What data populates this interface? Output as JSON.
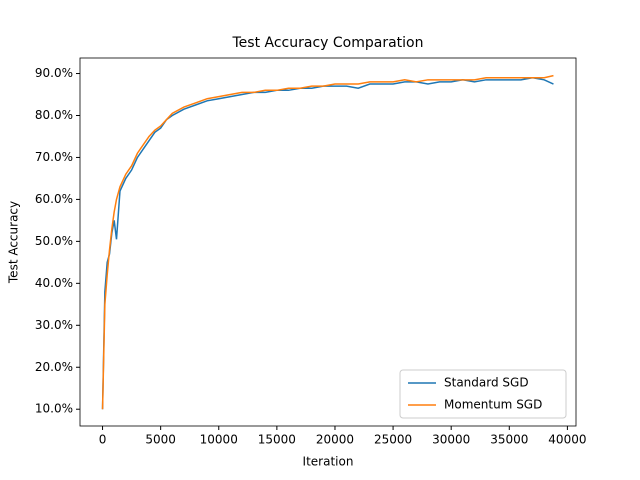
{
  "chart_data": {
    "type": "line",
    "title": "Test Accuracy Comparation",
    "x_label": "Iteration",
    "y_label": "Test Accuracy",
    "x": [
      0,
      200,
      400,
      600,
      800,
      1000,
      1200,
      1500,
      2000,
      2500,
      3000,
      3500,
      4000,
      4500,
      5000,
      5500,
      6000,
      7000,
      8000,
      9000,
      10000,
      11000,
      12000,
      13000,
      14000,
      15000,
      16000,
      17000,
      18000,
      19000,
      20000,
      21000,
      22000,
      23000,
      24000,
      25000,
      26000,
      27000,
      28000,
      29000,
      30000,
      31000,
      32000,
      33000,
      34000,
      35000,
      36000,
      37000,
      38000,
      38800
    ],
    "series": [
      {
        "name": "Standard SGD",
        "color": "#1f77b4",
        "values": [
          10,
          38,
          45,
          47,
          52,
          55,
          50.5,
          62,
          65,
          67,
          70,
          72,
          74,
          76,
          77,
          79,
          80,
          81.5,
          82.5,
          83.5,
          84,
          84.5,
          85,
          85.5,
          85.5,
          86,
          86,
          86.5,
          86.5,
          87,
          87,
          87,
          86.5,
          87.5,
          87.5,
          87.5,
          88,
          88,
          87.5,
          88,
          88,
          88.5,
          88,
          88.5,
          88.5,
          88.5,
          88.5,
          89,
          88.5,
          87.5
        ]
      },
      {
        "name": "Momentum SGD",
        "color": "#ff7f0e",
        "values": [
          10,
          35,
          42,
          48,
          53,
          57,
          60,
          63,
          66,
          68,
          71,
          73,
          75,
          76.5,
          77.5,
          79,
          80.5,
          82,
          83,
          84,
          84.5,
          85,
          85.5,
          85.5,
          86,
          86,
          86.5,
          86.5,
          87,
          87,
          87.5,
          87.5,
          87.5,
          88,
          88,
          88,
          88.5,
          88,
          88.5,
          88.5,
          88.5,
          88.5,
          88.5,
          89,
          89,
          89,
          89,
          89,
          89,
          89.5
        ]
      }
    ],
    "xlim": [
      -1940,
      40740
    ],
    "ylim": [
      6.0,
      93.7
    ],
    "xticks": [
      0,
      5000,
      10000,
      15000,
      20000,
      25000,
      30000,
      35000,
      40000
    ],
    "yticks": [
      {
        "value": 10,
        "label": "10.0%"
      },
      {
        "value": 20,
        "label": "20.0%"
      },
      {
        "value": 30,
        "label": "30.0%"
      },
      {
        "value": 40,
        "label": "40.0%"
      },
      {
        "value": 50,
        "label": "50.0%"
      },
      {
        "value": 60,
        "label": "60.0%"
      },
      {
        "value": 70,
        "label": "70.0%"
      },
      {
        "value": 80,
        "label": "80.0%"
      },
      {
        "value": 90,
        "label": "90.0%"
      }
    ],
    "legend": "lower right"
  }
}
